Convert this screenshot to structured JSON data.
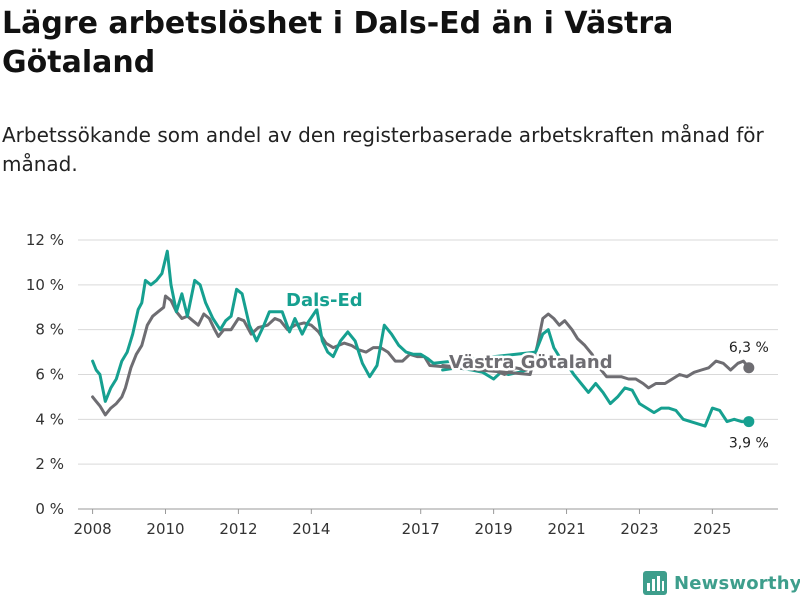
{
  "title": "Lägre arbetslöshet i Dals-Ed än i Västra Götaland",
  "subtitle": "Arbetssökande som andel av den registerbaserade arbetskraften månad för månad.",
  "brand": {
    "name": "Newsworthy",
    "icon": "bar-chart-logo-icon"
  },
  "colors": {
    "dals_ed": "#16a090",
    "vastra_gotaland": "#6e6d72",
    "grid": "#d9d9d9",
    "brand": "#3e9e8c"
  },
  "chart_data": {
    "type": "line",
    "x_unit": "year",
    "xlim": [
      2007.6,
      2026.8
    ],
    "ylim": [
      0,
      12
    ],
    "yticks": [
      0,
      2,
      4,
      6,
      8,
      10,
      12
    ],
    "ytick_labels": [
      "0 %",
      "2 %",
      "4 %",
      "6 %",
      "8 %",
      "10 %",
      "12 %"
    ],
    "xticks": [
      2008,
      2010,
      2012,
      2014,
      2017,
      2019,
      2021,
      2023,
      2025
    ],
    "xtick_labels": [
      "2008",
      "2010",
      "2012",
      "2014",
      "2017",
      "2019",
      "2021",
      "2023",
      "2025"
    ],
    "series": [
      {
        "name": "Västra Götaland",
        "label": "Västra Götaland",
        "color_key": "vastra_gotaland",
        "end_label": "6,3 %",
        "points": [
          [
            2008.0,
            5.0
          ],
          [
            2008.1,
            4.8
          ],
          [
            2008.2,
            4.6
          ],
          [
            2008.35,
            4.2
          ],
          [
            2008.5,
            4.5
          ],
          [
            2008.65,
            4.7
          ],
          [
            2008.8,
            5.0
          ],
          [
            2008.9,
            5.4
          ],
          [
            2009.05,
            6.3
          ],
          [
            2009.2,
            6.9
          ],
          [
            2009.35,
            7.3
          ],
          [
            2009.5,
            8.2
          ],
          [
            2009.65,
            8.6
          ],
          [
            2009.8,
            8.8
          ],
          [
            2009.95,
            9.0
          ],
          [
            2010.0,
            9.5
          ],
          [
            2010.15,
            9.3
          ],
          [
            2010.3,
            8.8
          ],
          [
            2010.45,
            8.5
          ],
          [
            2010.6,
            8.6
          ],
          [
            2010.75,
            8.4
          ],
          [
            2010.9,
            8.2
          ],
          [
            2011.05,
            8.7
          ],
          [
            2011.2,
            8.5
          ],
          [
            2011.35,
            8.0
          ],
          [
            2011.45,
            7.7
          ],
          [
            2011.6,
            8.0
          ],
          [
            2011.8,
            8.0
          ],
          [
            2012.0,
            8.5
          ],
          [
            2012.15,
            8.4
          ],
          [
            2012.35,
            7.8
          ],
          [
            2012.55,
            8.1
          ],
          [
            2012.8,
            8.2
          ],
          [
            2013.0,
            8.5
          ],
          [
            2013.15,
            8.4
          ],
          [
            2013.35,
            8.0
          ],
          [
            2013.55,
            8.2
          ],
          [
            2013.8,
            8.3
          ],
          [
            2014.0,
            8.2
          ],
          [
            2014.2,
            7.9
          ],
          [
            2014.4,
            7.4
          ],
          [
            2014.6,
            7.2
          ],
          [
            2014.9,
            7.4
          ],
          [
            2015.1,
            7.3
          ],
          [
            2015.3,
            7.1
          ],
          [
            2015.5,
            7.0
          ],
          [
            2015.7,
            7.2
          ],
          [
            2015.9,
            7.2
          ],
          [
            2016.1,
            7.0
          ],
          [
            2016.3,
            6.6
          ],
          [
            2016.5,
            6.6
          ],
          [
            2016.7,
            6.9
          ],
          [
            2016.9,
            6.8
          ],
          [
            2017.1,
            6.8
          ],
          [
            2017.25,
            6.4
          ],
          [
            2020.0,
            6.0
          ],
          [
            2020.2,
            7.3
          ],
          [
            2020.35,
            8.5
          ],
          [
            2020.5,
            8.7
          ],
          [
            2020.65,
            8.5
          ],
          [
            2020.8,
            8.2
          ],
          [
            2020.95,
            8.4
          ],
          [
            2021.15,
            8.0
          ],
          [
            2021.3,
            7.6
          ],
          [
            2021.5,
            7.3
          ],
          [
            2021.7,
            6.9
          ],
          [
            2021.9,
            6.3
          ],
          [
            2022.1,
            5.9
          ],
          [
            2022.3,
            5.9
          ],
          [
            2022.5,
            5.9
          ],
          [
            2022.7,
            5.8
          ],
          [
            2022.9,
            5.8
          ],
          [
            2023.1,
            5.6
          ],
          [
            2023.25,
            5.4
          ],
          [
            2023.45,
            5.6
          ],
          [
            2023.7,
            5.6
          ],
          [
            2023.9,
            5.8
          ],
          [
            2024.1,
            6.0
          ],
          [
            2024.3,
            5.9
          ],
          [
            2024.5,
            6.1
          ],
          [
            2024.7,
            6.2
          ],
          [
            2024.9,
            6.3
          ],
          [
            2025.1,
            6.6
          ],
          [
            2025.3,
            6.5
          ],
          [
            2025.5,
            6.2
          ],
          [
            2025.7,
            6.5
          ],
          [
            2025.85,
            6.6
          ],
          [
            2026.0,
            6.3
          ]
        ]
      },
      {
        "name": "Dals-Ed",
        "label": "Dals-Ed",
        "color_key": "dals_ed",
        "end_label": "3,9 %",
        "points": [
          [
            2008.0,
            6.6
          ],
          [
            2008.1,
            6.2
          ],
          [
            2008.2,
            6.0
          ],
          [
            2008.35,
            4.8
          ],
          [
            2008.5,
            5.4
          ],
          [
            2008.65,
            5.8
          ],
          [
            2008.8,
            6.6
          ],
          [
            2008.95,
            7.0
          ],
          [
            2009.1,
            7.8
          ],
          [
            2009.25,
            8.9
          ],
          [
            2009.35,
            9.2
          ],
          [
            2009.45,
            10.2
          ],
          [
            2009.6,
            10.0
          ],
          [
            2009.75,
            10.2
          ],
          [
            2009.9,
            10.5
          ],
          [
            2010.05,
            11.5
          ],
          [
            2010.15,
            10.0
          ],
          [
            2010.3,
            8.8
          ],
          [
            2010.45,
            9.6
          ],
          [
            2010.6,
            8.6
          ],
          [
            2010.8,
            10.2
          ],
          [
            2010.95,
            10.0
          ],
          [
            2011.1,
            9.2
          ],
          [
            2011.3,
            8.5
          ],
          [
            2011.5,
            8.0
          ],
          [
            2011.65,
            8.4
          ],
          [
            2011.8,
            8.6
          ],
          [
            2011.95,
            9.8
          ],
          [
            2012.1,
            9.6
          ],
          [
            2012.3,
            8.2
          ],
          [
            2012.5,
            7.5
          ],
          [
            2012.7,
            8.2
          ],
          [
            2012.85,
            8.8
          ],
          [
            2013.2,
            8.8
          ],
          [
            2013.4,
            7.9
          ],
          [
            2013.55,
            8.5
          ],
          [
            2013.75,
            7.8
          ],
          [
            2013.9,
            8.3
          ],
          [
            2014.15,
            8.9
          ],
          [
            2014.3,
            7.5
          ],
          [
            2014.45,
            7.0
          ],
          [
            2014.6,
            6.8
          ],
          [
            2014.8,
            7.5
          ],
          [
            2015.0,
            7.9
          ],
          [
            2015.2,
            7.5
          ],
          [
            2015.4,
            6.5
          ],
          [
            2015.6,
            5.9
          ],
          [
            2015.8,
            6.4
          ],
          [
            2016.0,
            8.2
          ],
          [
            2016.2,
            7.8
          ],
          [
            2016.4,
            7.3
          ],
          [
            2016.6,
            7.0
          ],
          [
            2016.8,
            6.9
          ],
          [
            2017.0,
            6.9
          ],
          [
            2017.2,
            6.7
          ],
          [
            2017.35,
            6.5
          ],
          [
            2020.15,
            7.0
          ],
          [
            2020.35,
            7.8
          ],
          [
            2020.5,
            8.0
          ],
          [
            2020.65,
            7.2
          ],
          [
            2020.8,
            6.8
          ],
          [
            2021.0,
            6.5
          ],
          [
            2021.2,
            6.0
          ],
          [
            2021.4,
            5.6
          ],
          [
            2021.6,
            5.2
          ],
          [
            2021.8,
            5.6
          ],
          [
            2022.0,
            5.2
          ],
          [
            2022.2,
            4.7
          ],
          [
            2022.4,
            5.0
          ],
          [
            2022.6,
            5.4
          ],
          [
            2022.8,
            5.3
          ],
          [
            2023.0,
            4.7
          ],
          [
            2023.2,
            4.5
          ],
          [
            2023.4,
            4.3
          ],
          [
            2023.6,
            4.5
          ],
          [
            2023.8,
            4.5
          ],
          [
            2024.0,
            4.4
          ],
          [
            2024.2,
            4.0
          ],
          [
            2024.4,
            3.9
          ],
          [
            2024.6,
            3.8
          ],
          [
            2024.8,
            3.7
          ],
          [
            2025.0,
            4.5
          ],
          [
            2025.2,
            4.4
          ],
          [
            2025.4,
            3.9
          ],
          [
            2025.6,
            4.0
          ],
          [
            2025.8,
            3.9
          ],
          [
            2026.0,
            3.9
          ]
        ]
      }
    ],
    "fragments": [
      {
        "series": "Dals-Ed",
        "points": [
          [
            2017.6,
            6.2
          ],
          [
            2018.0,
            6.3
          ],
          [
            2018.4,
            6.2
          ],
          [
            2018.7,
            6.1
          ],
          [
            2019.0,
            5.8
          ],
          [
            2019.2,
            6.1
          ],
          [
            2019.4,
            6.0
          ],
          [
            2019.7,
            6.1
          ],
          [
            2019.9,
            6.2
          ]
        ]
      },
      {
        "series": "Västra Götaland",
        "points": [
          [
            2017.6,
            6.4
          ],
          [
            2018.2,
            6.3
          ],
          [
            2018.6,
            6.2
          ],
          [
            2019.0,
            6.2
          ],
          [
            2019.3,
            6.0
          ],
          [
            2019.6,
            6.3
          ],
          [
            2019.9,
            6.2
          ]
        ]
      }
    ]
  }
}
